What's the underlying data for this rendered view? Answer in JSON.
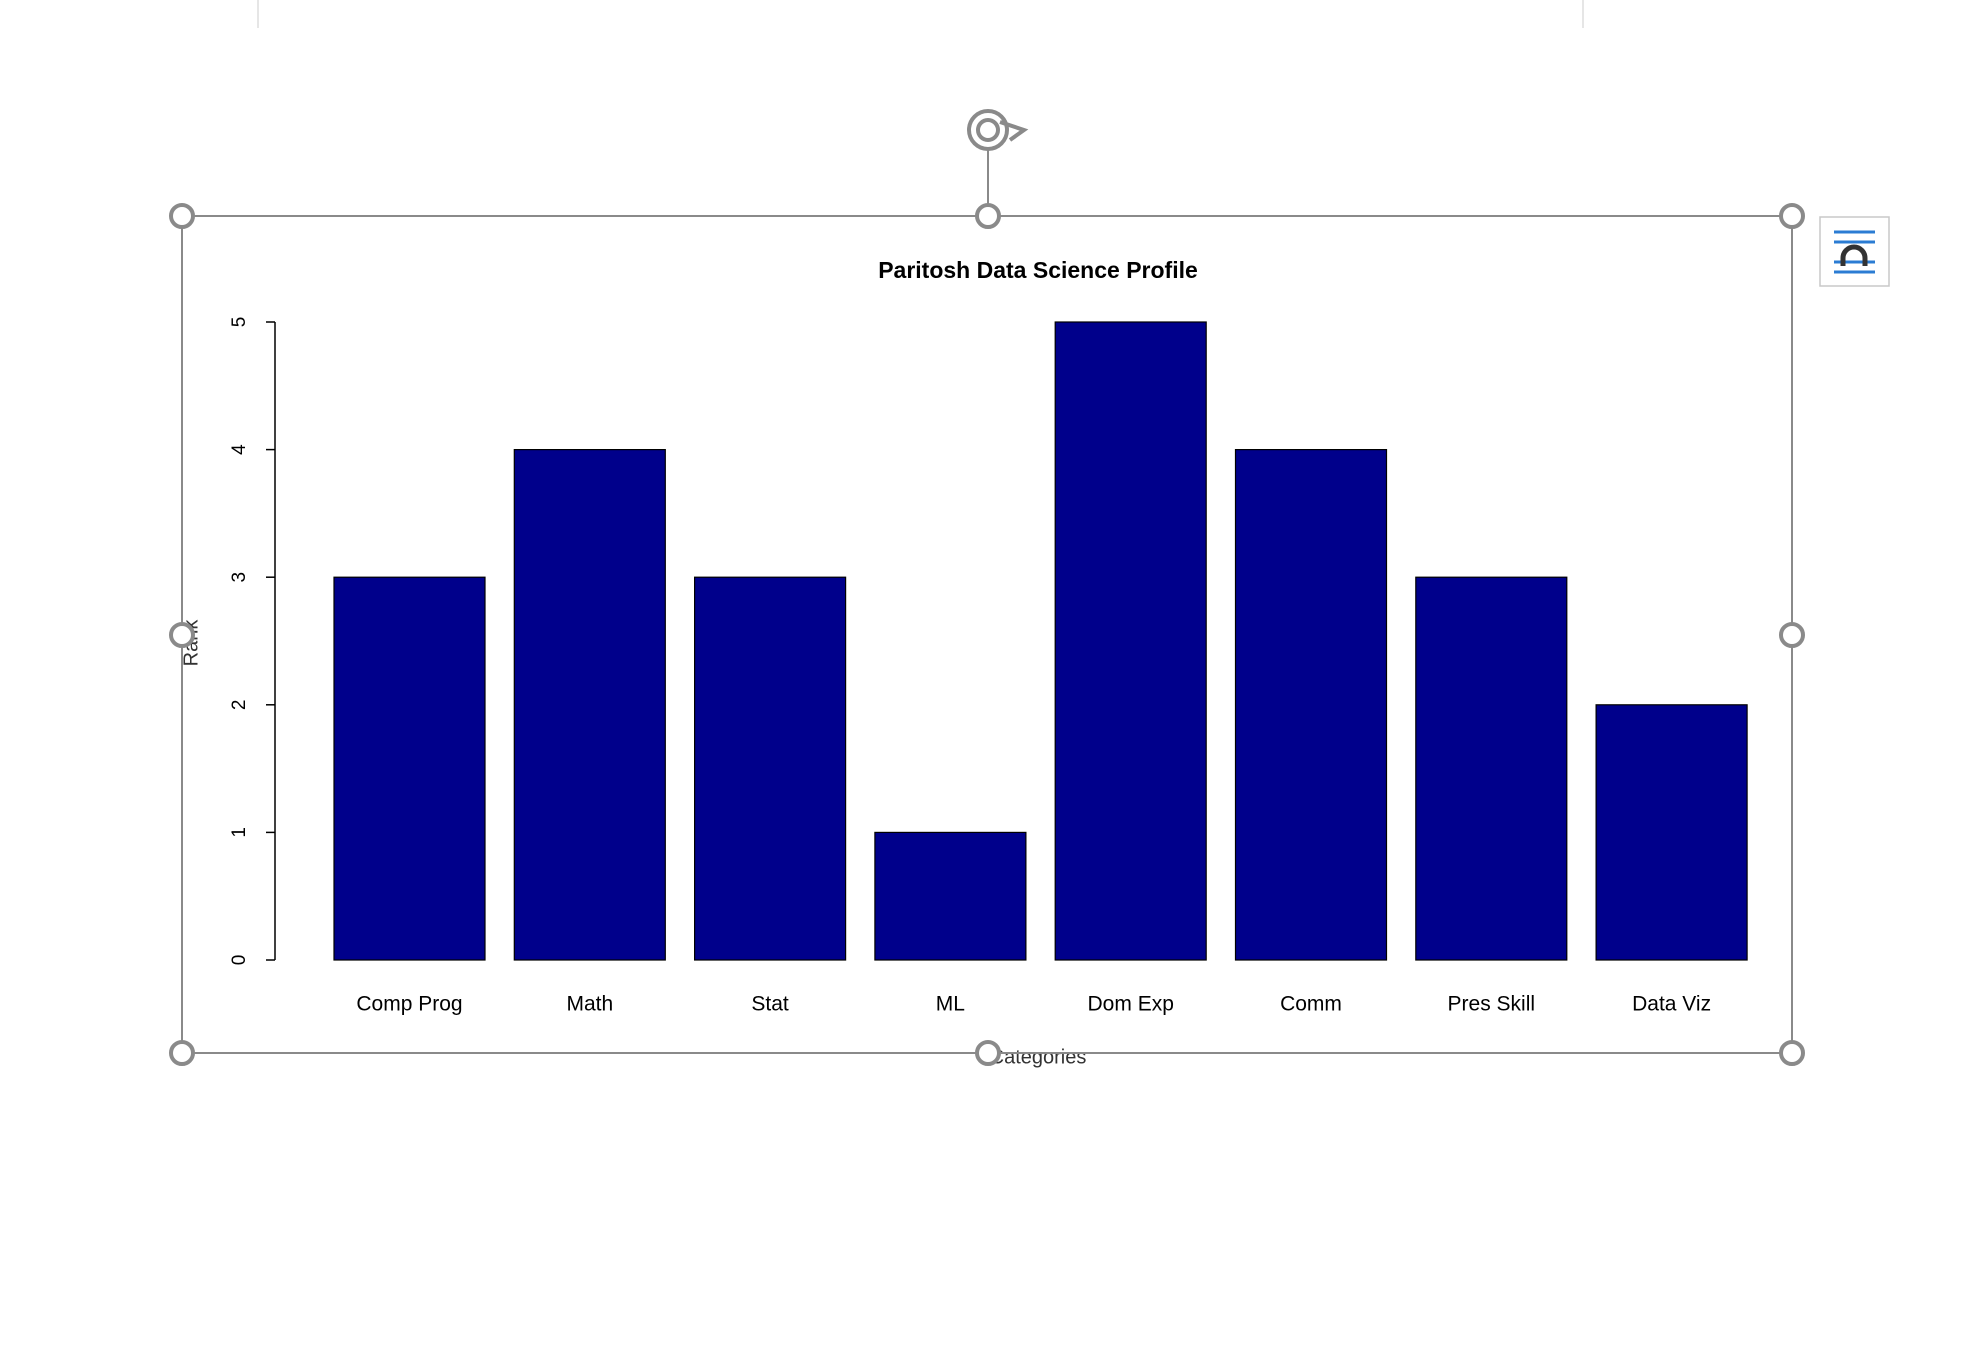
{
  "chart_data": {
    "type": "bar",
    "title": "Paritosh Data Science Profile",
    "categories": [
      "Comp Prog",
      "Math",
      "Stat",
      "ML",
      "Dom Exp",
      "Comm",
      "Pres Skill",
      "Data Viz"
    ],
    "values": [
      3,
      4,
      3,
      1,
      5,
      4,
      3,
      2
    ],
    "color": "#00008b",
    "x_label": "Categories",
    "y_label": "Rank",
    "ylim": [
      0,
      5
    ],
    "yticks": [
      0,
      1,
      2,
      3,
      4,
      5
    ]
  }
}
